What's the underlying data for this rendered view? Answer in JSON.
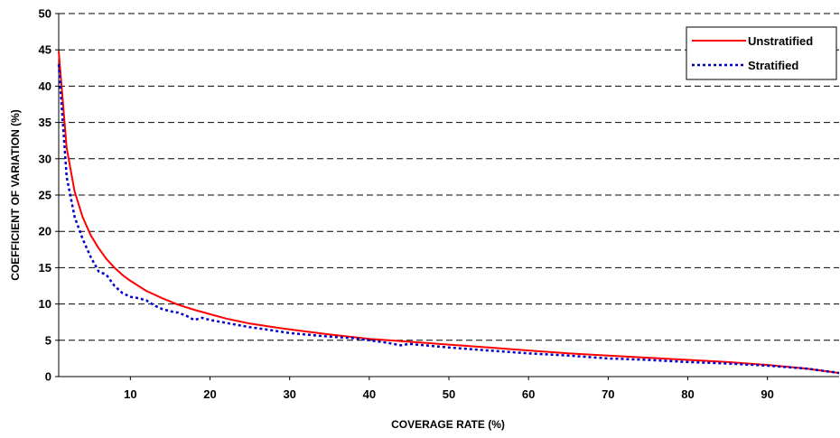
{
  "chart_data": {
    "type": "line",
    "title": "",
    "xlabel": "COVERAGE RATE (%)",
    "ylabel": "COEFFICIENT OF VARIATION (%)",
    "xlim": [
      1,
      99
    ],
    "ylim": [
      0,
      50
    ],
    "x_ticks": [
      10,
      20,
      30,
      40,
      50,
      60,
      70,
      80,
      90
    ],
    "y_ticks": [
      0,
      5,
      10,
      15,
      20,
      25,
      30,
      35,
      40,
      45,
      50
    ],
    "grid": "horizontal dashed",
    "legend_position": "top-right",
    "series": [
      {
        "name": "Unstratified",
        "color": "#ff0000",
        "style": "solid",
        "x": [
          1,
          2,
          3,
          4,
          5,
          6,
          7,
          8,
          9,
          10,
          12,
          14,
          16,
          18,
          20,
          22,
          25,
          28,
          30,
          35,
          40,
          45,
          50,
          55,
          60,
          65,
          70,
          75,
          80,
          85,
          90,
          95,
          99
        ],
        "y": [
          44.8,
          31.5,
          25.5,
          22,
          19.5,
          17.7,
          16.2,
          15.0,
          14.0,
          13.2,
          11.8,
          10.8,
          9.9,
          9.2,
          8.6,
          8.0,
          7.3,
          6.8,
          6.5,
          5.8,
          5.2,
          4.8,
          4.4,
          4.0,
          3.6,
          3.2,
          2.9,
          2.6,
          2.3,
          2.0,
          1.6,
          1.1,
          0.5
        ]
      },
      {
        "name": "Stratified",
        "color": "#0000cc",
        "style": "dotted",
        "x": [
          1,
          2,
          3,
          4,
          5,
          6,
          7,
          8,
          9,
          10,
          11,
          12,
          13,
          14,
          15,
          16,
          17,
          18,
          19,
          20,
          22,
          25,
          27,
          30,
          33,
          35,
          38,
          40,
          42,
          44,
          45,
          48,
          50,
          55,
          60,
          65,
          70,
          75,
          80,
          85,
          90,
          95,
          99
        ],
        "y": [
          43,
          27.5,
          22,
          19,
          16.5,
          14.5,
          14,
          12.5,
          11.5,
          11,
          10.8,
          10.5,
          9.8,
          9.3,
          9.0,
          8.8,
          8.4,
          7.8,
          8.1,
          7.8,
          7.4,
          6.8,
          6.5,
          6.0,
          5.7,
          5.5,
          5.3,
          5.0,
          4.7,
          4.3,
          4.5,
          4.2,
          4.0,
          3.6,
          3.2,
          2.9,
          2.5,
          2.3,
          2.0,
          1.8,
          1.5,
          1.1,
          0.5
        ]
      }
    ]
  }
}
